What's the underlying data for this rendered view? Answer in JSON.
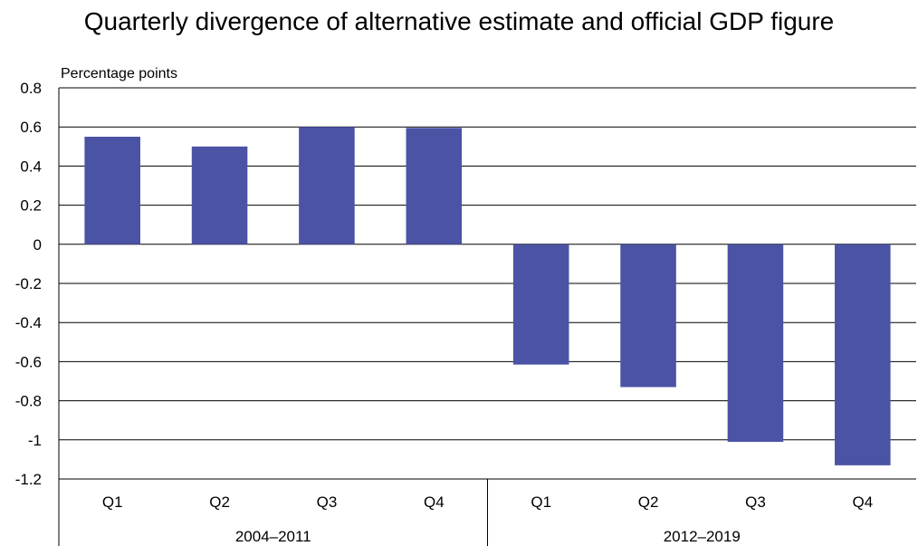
{
  "chart_data": {
    "type": "bar",
    "title": "Quarterly divergence of alternative estimate and official GDP figure",
    "ylabel": "Percentage points",
    "xlabel": "",
    "ylim": [
      -1.2,
      0.8
    ],
    "yticks": [
      0.8,
      0.6,
      0.4,
      0.2,
      0,
      -0.2,
      -0.4,
      -0.6,
      -0.8,
      -1,
      -1.2
    ],
    "ytick_labels": [
      "0.8",
      "0.6",
      "0.4",
      "0.2",
      "0",
      "-0.2",
      "-0.4",
      "-0.6",
      "-0.8",
      "-1",
      "-1.2"
    ],
    "grid": true,
    "categories": [
      "Q1",
      "Q2",
      "Q3",
      "Q4",
      "Q1",
      "Q2",
      "Q3",
      "Q4"
    ],
    "groups": [
      {
        "label": "2004–2011",
        "count": 4
      },
      {
        "label": "2012–2019",
        "count": 4
      }
    ],
    "values": [
      0.55,
      0.5,
      0.6,
      0.595,
      -0.615,
      -0.73,
      -1.01,
      -1.13
    ],
    "bar_color": "#4B53A5"
  }
}
